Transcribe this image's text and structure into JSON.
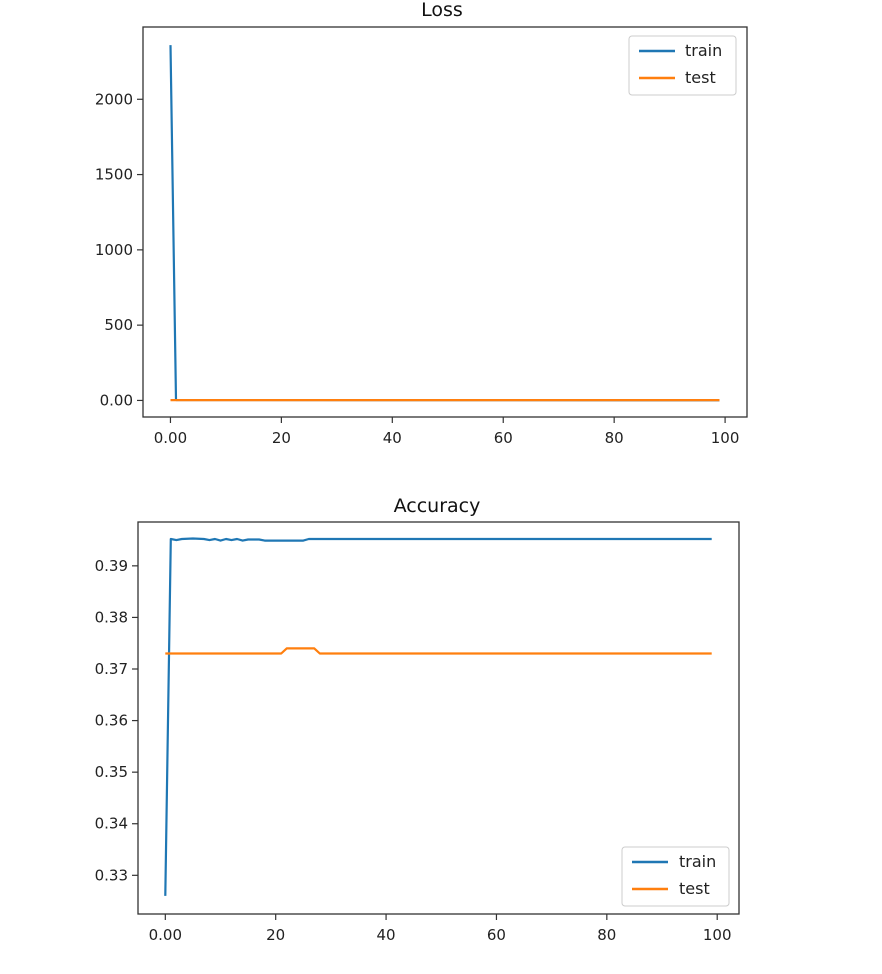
{
  "chart_data": [
    {
      "type": "line",
      "title": "Loss",
      "xlabel": "",
      "ylabel": "",
      "xlim": [
        -4.95,
        103.95
      ],
      "ylim": [
        -110,
        2480
      ],
      "xticks": [
        0,
        20,
        40,
        60,
        80,
        100
      ],
      "yticks": [
        0,
        500,
        1000,
        1500,
        2000
      ],
      "grid": false,
      "legend": "top-right",
      "series": [
        {
          "name": "train",
          "color": "#1f77b4",
          "points": [
            [
              0,
              2360
            ],
            [
              1,
              3
            ],
            [
              99,
              1
            ]
          ]
        },
        {
          "name": "test",
          "color": "#ff7f0e",
          "points": [
            [
              0,
              2
            ],
            [
              99,
              2
            ]
          ]
        }
      ]
    },
    {
      "type": "line",
      "title": "Accuracy",
      "xlabel": "",
      "ylabel": "",
      "xlim": [
        -4.95,
        103.95
      ],
      "ylim": [
        0.3225,
        0.3985
      ],
      "xticks": [
        0,
        20,
        40,
        60,
        80,
        100
      ],
      "yticks": [
        0.33,
        0.34,
        0.35,
        0.36,
        0.37,
        0.38,
        0.39
      ],
      "grid": false,
      "legend": "bottom-right",
      "series": [
        {
          "name": "train",
          "color": "#1f77b4",
          "points": [
            [
              0,
              0.326
            ],
            [
              1,
              0.3952
            ],
            [
              2,
              0.395
            ],
            [
              3,
              0.3952
            ],
            [
              5,
              0.3953
            ],
            [
              7,
              0.3952
            ],
            [
              8,
              0.395
            ],
            [
              9,
              0.3952
            ],
            [
              10,
              0.3949
            ],
            [
              11,
              0.3952
            ],
            [
              12,
              0.395
            ],
            [
              13,
              0.3952
            ],
            [
              14,
              0.3949
            ],
            [
              15,
              0.3951
            ],
            [
              17,
              0.3951
            ],
            [
              18,
              0.3949
            ],
            [
              20,
              0.3949
            ],
            [
              25,
              0.3949
            ],
            [
              26,
              0.3952
            ],
            [
              99,
              0.3952
            ]
          ]
        },
        {
          "name": "test",
          "color": "#ff7f0e",
          "points": [
            [
              0,
              0.373
            ],
            [
              21,
              0.373
            ],
            [
              22,
              0.374
            ],
            [
              27,
              0.374
            ],
            [
              28,
              0.373
            ],
            [
              99,
              0.373
            ]
          ]
        }
      ]
    }
  ]
}
